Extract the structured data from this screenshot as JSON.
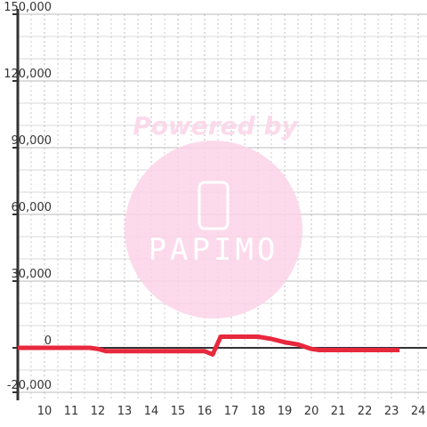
{
  "chart_data": {
    "type": "line",
    "watermark": {
      "title": "Powered by",
      "brand": "PAPIMO"
    },
    "x": [
      9,
      10,
      11,
      11.7,
      12,
      12.3,
      12.5,
      13,
      14,
      15,
      16,
      16.3,
      16.6,
      17,
      18,
      18.5,
      19,
      19.5,
      20,
      20.3,
      21,
      22,
      23,
      23.3
    ],
    "series": [
      {
        "color": "#e8283c",
        "values": [
          0,
          0,
          0,
          0,
          -500,
          -1500,
          -1500,
          -1500,
          -1500,
          -1500,
          -1500,
          -3000,
          5000,
          5000,
          5000,
          4000,
          2500,
          1500,
          -500,
          -1000,
          -1000,
          -1000,
          -1000,
          -1000
        ]
      }
    ],
    "xlim": [
      9,
      24.33
    ],
    "xticks": [
      10,
      11,
      12,
      13,
      14,
      15,
      16,
      17,
      18,
      19,
      20,
      21,
      22,
      23,
      24
    ],
    "ylim": [
      -20000,
      150000
    ],
    "yticks": [
      {
        "value": -20000,
        "label": "-20,000"
      },
      0,
      {
        "value": 30000,
        "label": "30,000"
      },
      {
        "value": 60000,
        "label": "60,000"
      },
      {
        "value": 90000,
        "label": "90,000"
      },
      {
        "value": 120000,
        "label": "120,000"
      },
      {
        "value": 150000,
        "label": "150,000"
      }
    ],
    "grid": true
  }
}
